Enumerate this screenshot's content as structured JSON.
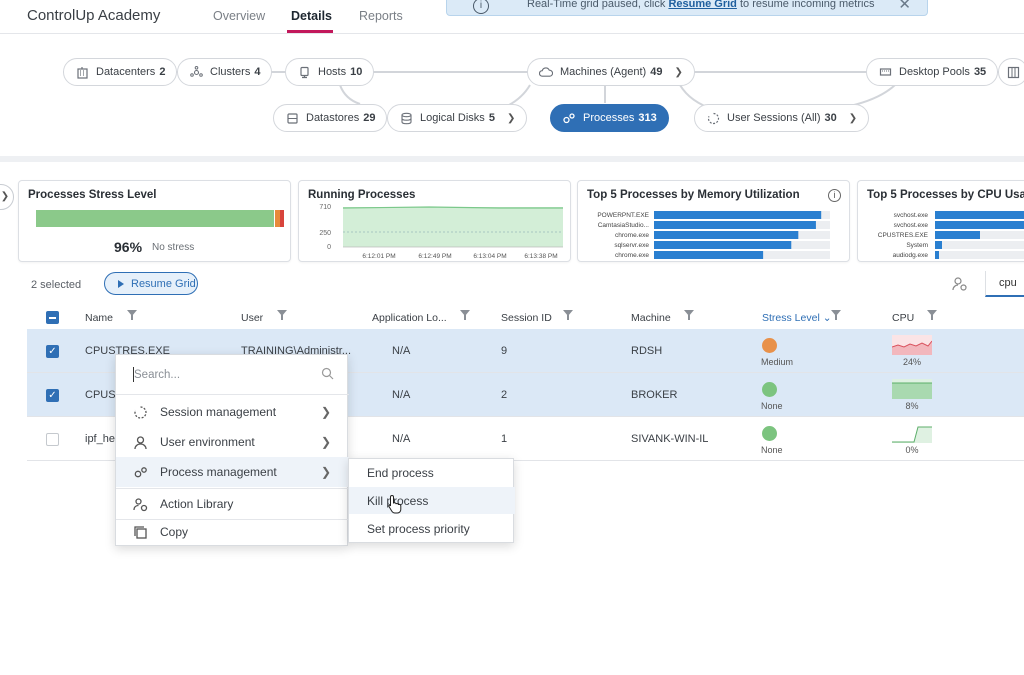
{
  "app": {
    "title": "ControlUp Academy"
  },
  "nav": {
    "tabs": [
      "Overview",
      "Details",
      "Reports"
    ],
    "active": "Details"
  },
  "banner": {
    "text_before": "Real-Time grid paused, click",
    "link": "Resume Grid",
    "text_after": "to resume incoming metrics"
  },
  "topology": {
    "datacenters": {
      "label": "Datacenters",
      "count": "2"
    },
    "clusters": {
      "label": "Clusters",
      "count": "4"
    },
    "hosts": {
      "label": "Hosts",
      "count": "10"
    },
    "machines": {
      "label": "Machines (Agent)",
      "count": "49"
    },
    "desktop_pools": {
      "label": "Desktop Pools",
      "count": "35"
    },
    "datastores": {
      "label": "Datastores",
      "count": "29"
    },
    "logical_disks": {
      "label": "Logical Disks",
      "count": "5"
    },
    "processes": {
      "label": "Processes",
      "count": "313"
    },
    "user_sessions": {
      "label": "User Sessions (All)",
      "count": "30"
    }
  },
  "widgets": {
    "stress": {
      "title": "Processes Stress Level",
      "percent": "96%",
      "label": "No stress",
      "green_fraction": 0.96
    },
    "running": {
      "title": "Running Processes",
      "y_ticks": [
        "710",
        "250",
        "0"
      ],
      "x_ticks": [
        "6:12:01 PM",
        "6:12:49 PM",
        "6:13:04 PM",
        "6:13:38 PM"
      ]
    },
    "memory": {
      "title": "Top 5 Processes by Memory Utilization",
      "items": [
        {
          "name": "POWERPNT.EXE",
          "value": 0.95
        },
        {
          "name": "CamtasiaStudio...",
          "value": 0.92
        },
        {
          "name": "chrome.exe",
          "value": 0.82
        },
        {
          "name": "sqlservr.exe",
          "value": 0.78
        },
        {
          "name": "chrome.exe",
          "value": 0.62
        }
      ]
    },
    "cpu": {
      "title": "Top 5 Processes by CPU Usage",
      "items": [
        {
          "name": "svchost.exe",
          "value": 0.95
        },
        {
          "name": "svchost.exe",
          "value": 0.9
        },
        {
          "name": "CPUSTRES.EXE",
          "value": 0.45
        },
        {
          "name": "System",
          "value": 0.07
        },
        {
          "name": "audiodg.exe",
          "value": 0.04
        }
      ]
    }
  },
  "toolbar": {
    "selected": "2 selected",
    "resume": "Resume Grid",
    "search_value": "cpu"
  },
  "grid": {
    "columns": [
      "Name",
      "User",
      "Application Lo...",
      "Session ID",
      "Machine",
      "Stress Level",
      "CPU"
    ],
    "rows": [
      {
        "name": "CPUSTRES.EXE",
        "user": "TRAINING\\Administr...",
        "app": "N/A",
        "session": "9",
        "machine": "RDSH",
        "stress": "Medium",
        "stress_color": "#e8914a",
        "cpu": "24%",
        "selected": true
      },
      {
        "name": "CPUS",
        "user": "",
        "app": "N/A",
        "session": "2",
        "machine": "BROKER",
        "stress": "None",
        "stress_color": "#7cc47f",
        "cpu": "8%",
        "selected": true
      },
      {
        "name": "ipf_he",
        "user": "",
        "app": "N/A",
        "session": "1",
        "machine": "SIVANK-WIN-IL",
        "stress": "None",
        "stress_color": "#7cc47f",
        "cpu": "0%",
        "selected": false
      }
    ]
  },
  "context_menu": {
    "search_placeholder": "Search...",
    "items": [
      "Session management",
      "User environment",
      "Process management",
      "Action Library",
      "Copy"
    ],
    "submenu": [
      "End process",
      "Kill process",
      "Set process priority"
    ]
  }
}
